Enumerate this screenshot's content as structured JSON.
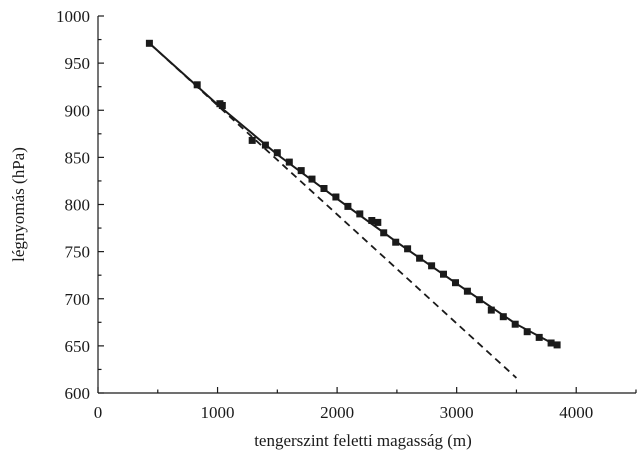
{
  "chart_data": {
    "type": "scatter",
    "xlabel": "tengerszint feletti magasság (m)",
    "ylabel": "légnyomás (hPa)",
    "xlim": [
      0,
      4500
    ],
    "ylim": [
      600,
      1000
    ],
    "x_ticks": [
      0,
      1000,
      2000,
      3000,
      4000
    ],
    "y_ticks": [
      600,
      650,
      700,
      750,
      800,
      850,
      900,
      950,
      1000
    ],
    "grid": false,
    "legend": "none",
    "series": [
      {
        "kind": "points",
        "marker": "square",
        "points": [
          [
            430,
            971
          ],
          [
            830,
            927
          ],
          [
            1020,
            907
          ],
          [
            1040,
            905
          ],
          [
            1290,
            868
          ],
          [
            1400,
            863
          ],
          [
            1500,
            855
          ],
          [
            1600,
            845
          ],
          [
            1700,
            836
          ],
          [
            1790,
            827
          ],
          [
            1890,
            817
          ],
          [
            1990,
            808
          ],
          [
            2090,
            798
          ],
          [
            2190,
            790
          ],
          [
            2290,
            783
          ],
          [
            2340,
            781
          ],
          [
            2390,
            770
          ],
          [
            2490,
            760
          ],
          [
            2590,
            753
          ],
          [
            2690,
            743
          ],
          [
            2790,
            735
          ],
          [
            2890,
            726
          ],
          [
            2990,
            717
          ],
          [
            3090,
            708
          ],
          [
            3190,
            699
          ],
          [
            3290,
            688
          ],
          [
            3390,
            681
          ],
          [
            3490,
            673
          ],
          [
            3590,
            665
          ],
          [
            3690,
            659
          ],
          [
            3790,
            653
          ],
          [
            3840,
            651
          ]
        ]
      },
      {
        "kind": "line",
        "style": "solid",
        "points": [
          [
            430,
            971
          ],
          [
            1000,
            906
          ],
          [
            1500,
            853
          ],
          [
            2000,
            806
          ],
          [
            2500,
            760
          ],
          [
            3000,
            716
          ],
          [
            3500,
            673
          ],
          [
            3840,
            650
          ]
        ]
      },
      {
        "kind": "line",
        "style": "dashed",
        "points": [
          [
            430,
            971
          ],
          [
            3500,
            616
          ]
        ]
      }
    ]
  }
}
